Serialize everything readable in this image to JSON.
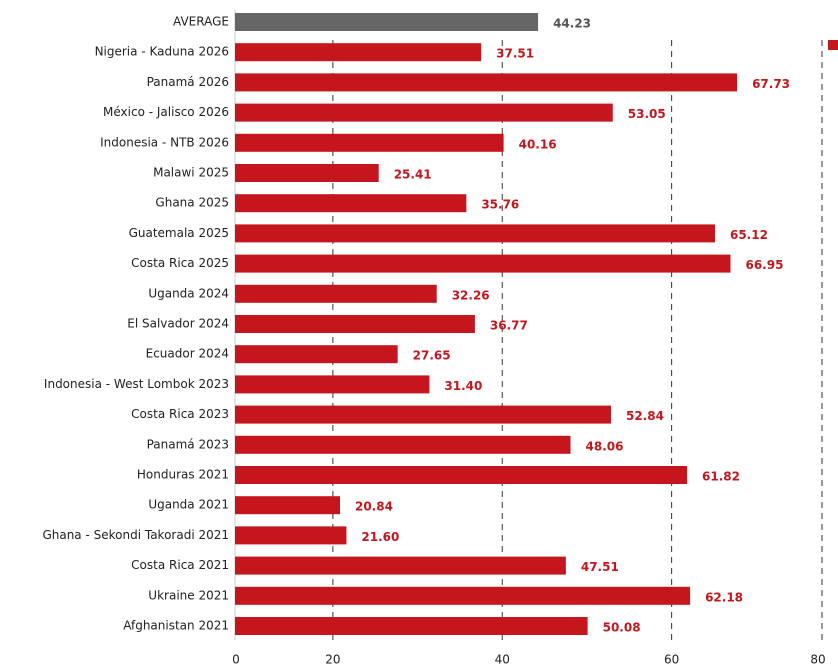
{
  "chart_data": {
    "type": "bar",
    "orientation": "horizontal",
    "categories": [
      "AVERAGE",
      "Nigeria - Kaduna 2026",
      "Panamá 2026",
      "México - Jalisco 2026",
      "Indonesia - NTB 2026",
      "Malawi 2025",
      "Ghana 2025",
      "Guatemala 2025",
      "Costa Rica 2025",
      "Uganda 2024",
      "El Salvador 2024",
      "Ecuador 2024",
      "Indonesia - West Lombok 2023",
      "Costa Rica 2023",
      "Panamá 2023",
      "Honduras 2021",
      "Uganda 2021",
      "Ghana - Sekondi Takoradi 2021",
      "Costa Rica 2021",
      "Ukraine 2021",
      "Afghanistan 2021"
    ],
    "values": [
      44.23,
      37.51,
      67.73,
      53.05,
      40.16,
      25.41,
      35.76,
      65.12,
      66.95,
      32.26,
      36.77,
      27.65,
      31.4,
      52.84,
      48.06,
      61.82,
      20.84,
      21.6,
      47.51,
      62.18,
      50.08
    ],
    "value_labels": [
      "44.23",
      "37.51",
      "67.73",
      "53.05",
      "40.16",
      "25.41",
      "35.76",
      "65.12",
      "66.95",
      "32.26",
      "36.77",
      "27.65",
      "31.40",
      "52.84",
      "48.06",
      "61.82",
      "20.84",
      "21.60",
      "47.51",
      "62.18",
      "50.08"
    ],
    "colors": [
      "#666666",
      "#c4161c",
      "#c4161c",
      "#c4161c",
      "#c4161c",
      "#c4161c",
      "#c4161c",
      "#c4161c",
      "#c4161c",
      "#c4161c",
      "#c4161c",
      "#c4161c",
      "#c4161c",
      "#c4161c",
      "#c4161c",
      "#c4161c",
      "#c4161c",
      "#c4161c",
      "#c4161c",
      "#c4161c",
      "#c4161c"
    ],
    "xlim": [
      0,
      80
    ],
    "xticks": [
      0,
      20,
      40,
      60,
      80
    ],
    "grid": true
  }
}
